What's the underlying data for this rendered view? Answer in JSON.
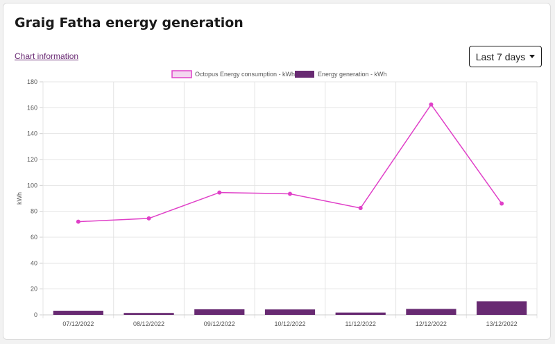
{
  "header": {
    "title": "Graig Fatha energy generation",
    "info_link": "Chart information",
    "range_label": "Last 7 days"
  },
  "colors": {
    "consumption_line": "#e040c8",
    "consumption_fill": "#f3d6ef",
    "generation_bar": "#682a72",
    "grid": "#e4e4e4"
  },
  "chart_data": {
    "type": "bar",
    "categories": [
      "07/12/2022",
      "08/12/2022",
      "09/12/2022",
      "10/12/2022",
      "11/12/2022",
      "12/12/2022",
      "13/12/2022"
    ],
    "ylabel": "kWh",
    "ylim": [
      0,
      180
    ],
    "yticks": [
      "0",
      "20",
      "40",
      "60",
      "80",
      "100",
      "120",
      "140",
      "160",
      "180"
    ],
    "grid": true,
    "legend_position": "top",
    "series": [
      {
        "name": "Octopus Energy consumption - kWh",
        "type": "line",
        "values": [
          72,
          74.5,
          94.5,
          93.5,
          82.5,
          162.5,
          86
        ]
      },
      {
        "name": "Energy generation - kWh",
        "type": "bar",
        "values": [
          3.2,
          1.5,
          4.3,
          4.2,
          1.8,
          4.6,
          10.5
        ]
      }
    ]
  }
}
